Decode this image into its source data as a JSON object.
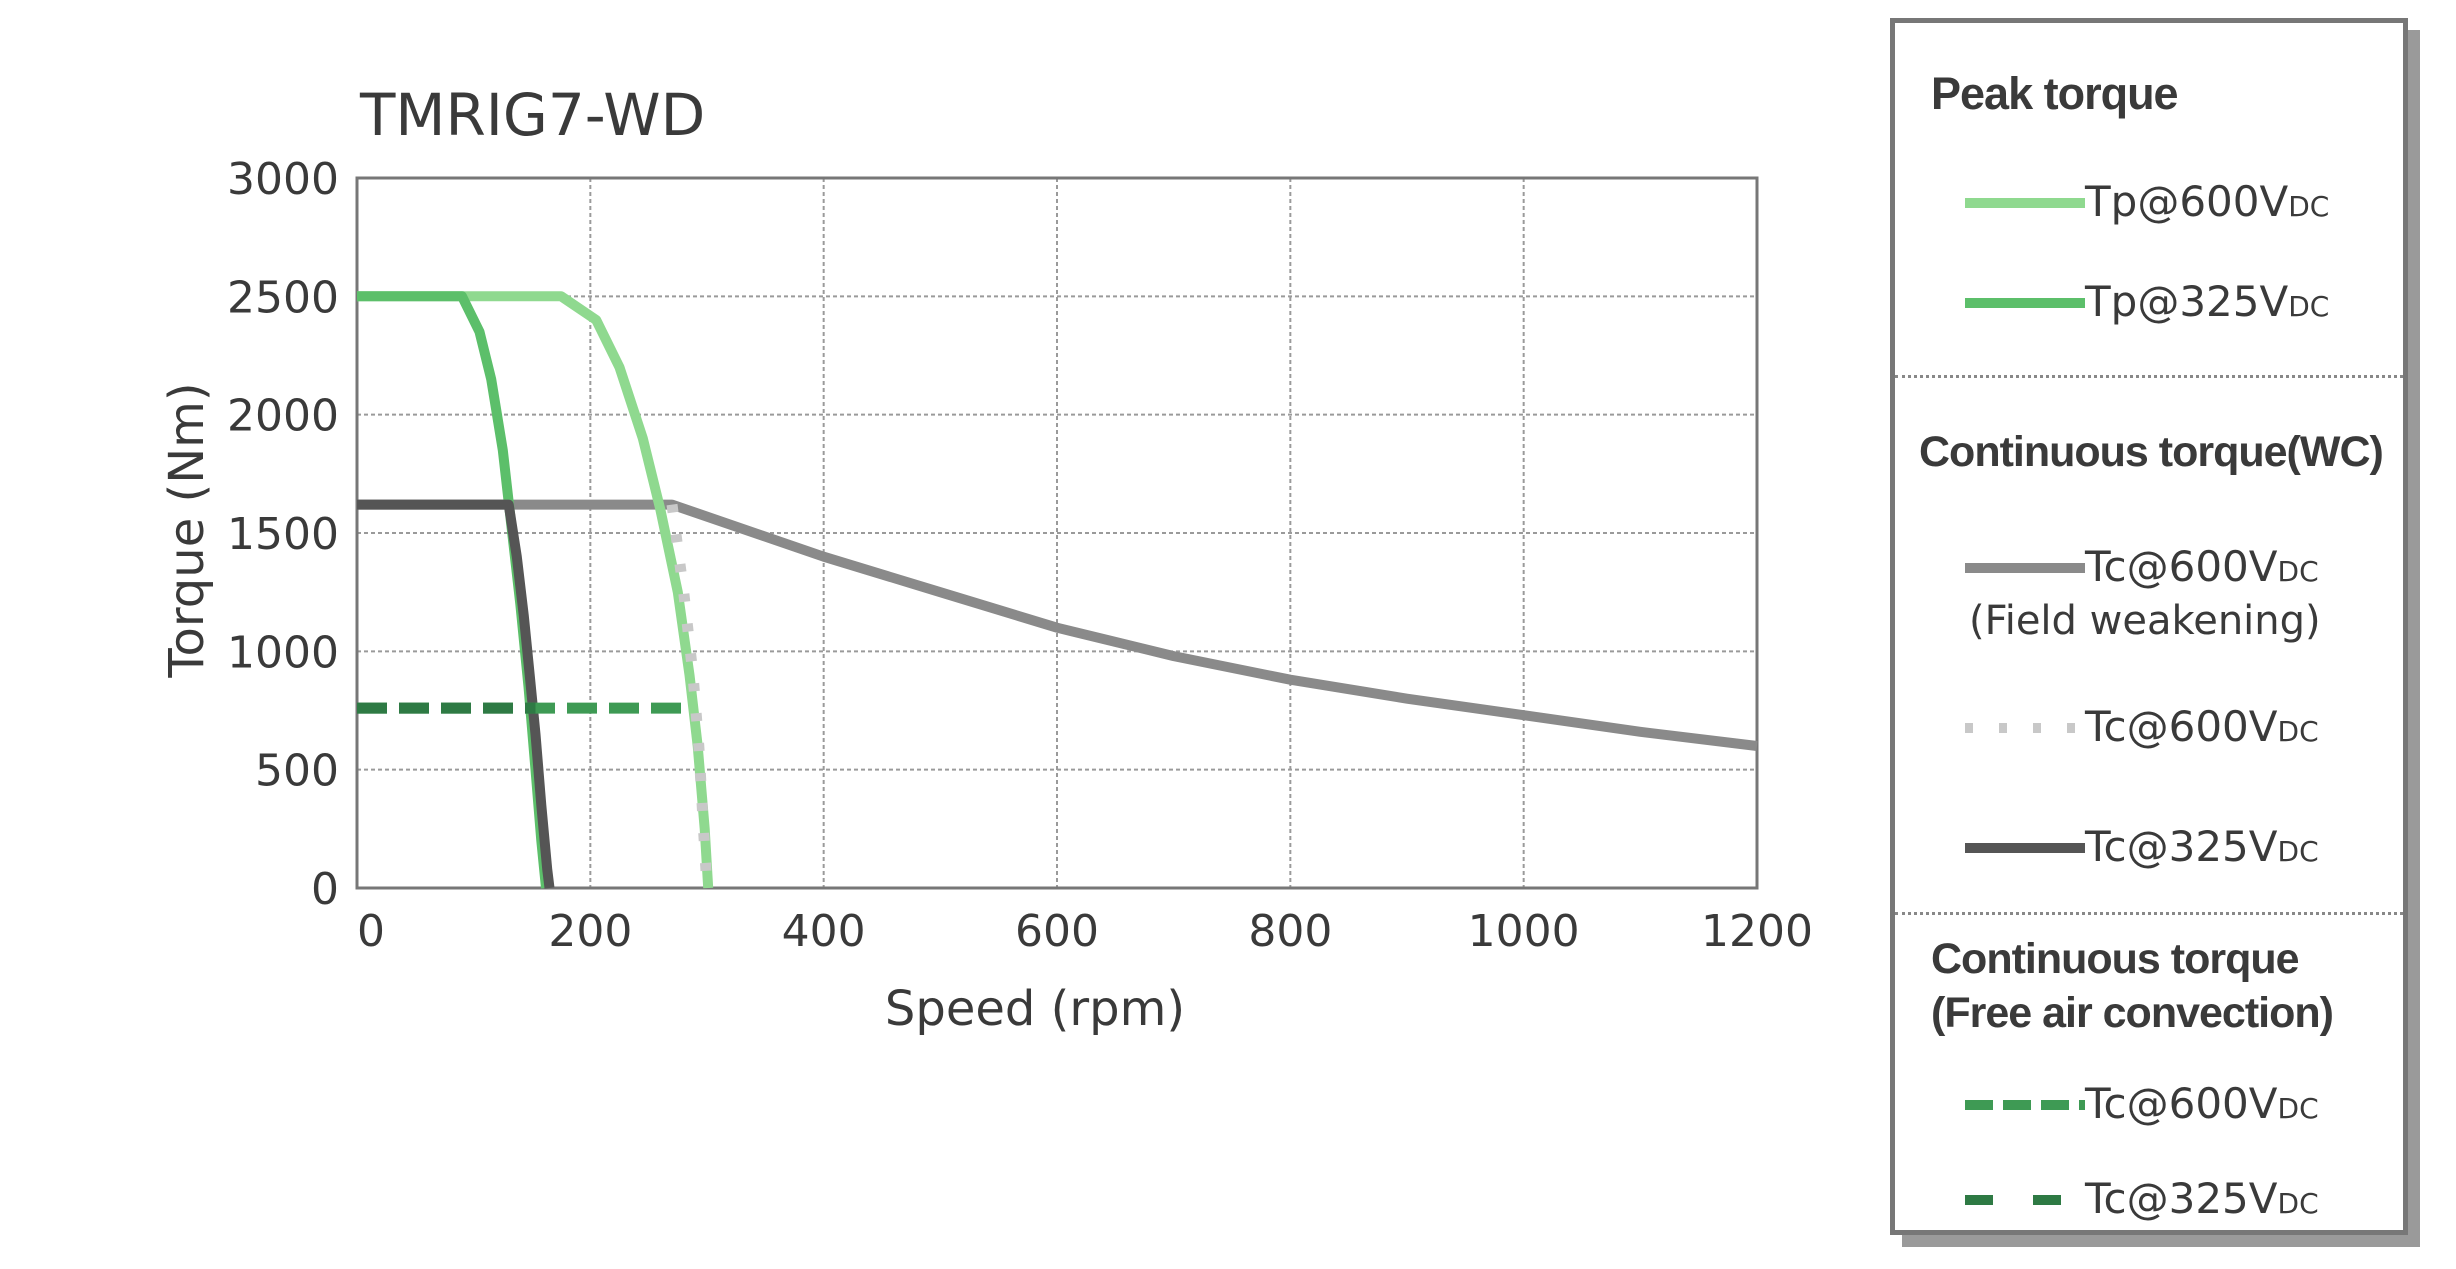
{
  "chart_data": {
    "type": "line",
    "title": "TMRIG7-WD",
    "xlabel": "Speed (rpm)",
    "ylabel": "Torque (Nm)",
    "xlim": [
      0,
      1200
    ],
    "ylim": [
      0,
      3000
    ],
    "xticks": [
      0,
      200,
      400,
      600,
      800,
      1000,
      1200
    ],
    "yticks": [
      0,
      500,
      1000,
      1500,
      2000,
      2500,
      3000
    ],
    "grid": true,
    "legend_position": "right",
    "series": [
      {
        "name": "Tp@600VDC",
        "group": "Peak torque",
        "color": "#8fd98f",
        "style": "solid",
        "x": [
          0,
          175,
          205,
          225,
          245,
          260,
          275,
          285,
          292,
          298,
          301
        ],
        "y": [
          2500,
          2500,
          2400,
          2200,
          1900,
          1600,
          1250,
          900,
          600,
          250,
          0
        ]
      },
      {
        "name": "Tp@325VDC",
        "group": "Peak torque",
        "color": "#5cbf6a",
        "style": "solid",
        "x": [
          0,
          90,
          105,
          115,
          125,
          133,
          140,
          147,
          153,
          158,
          162
        ],
        "y": [
          2500,
          2500,
          2350,
          2150,
          1850,
          1500,
          1200,
          850,
          500,
          200,
          0
        ]
      },
      {
        "name": "Tc@600VDC (Field weakening)",
        "group": "Continuous torque(WC)",
        "color": "#8a8a8a",
        "style": "solid",
        "x": [
          0,
          270,
          400,
          500,
          600,
          700,
          800,
          900,
          1000,
          1100,
          1200
        ],
        "y": [
          1620,
          1620,
          1400,
          1250,
          1100,
          980,
          880,
          800,
          730,
          660,
          600
        ]
      },
      {
        "name": "Tc@600VDC",
        "group": "Continuous torque(WC)",
        "color": "#c8c8c8",
        "style": "dotted",
        "x": [
          270,
          280,
          288,
          293,
          297,
          300
        ],
        "y": [
          1620,
          1250,
          900,
          600,
          250,
          0
        ]
      },
      {
        "name": "Tc@325VDC",
        "group": "Continuous torque(WC)",
        "color": "#555555",
        "style": "solid",
        "x": [
          0,
          130,
          137,
          143,
          148,
          153,
          158,
          163,
          165
        ],
        "y": [
          1620,
          1620,
          1400,
          1150,
          900,
          650,
          350,
          80,
          0
        ]
      },
      {
        "name": "Tc@600VDC",
        "group": "Continuous torque (Free air convection)",
        "color": "#3e9a54",
        "style": "dashed",
        "x": [
          0,
          280
        ],
        "y": [
          760,
          760
        ]
      },
      {
        "name": "Tc@325VDC",
        "group": "Continuous torque (Free air convection)",
        "color": "#2e7a44",
        "style": "dashed",
        "x": [
          0,
          153
        ],
        "y": [
          760,
          760
        ]
      }
    ]
  },
  "legend": {
    "peak_heading": "Peak torque",
    "peak_items": [
      {
        "label": "Tp@600V",
        "sub": "DC"
      },
      {
        "label": "Tp@325V",
        "sub": "DC"
      }
    ],
    "wc_heading": "Continuous torque(WC)",
    "wc_items": [
      {
        "label": "Tc@600V",
        "sub": "DC",
        "note": "(Field weakening)"
      },
      {
        "label": "Tc@600V",
        "sub": "DC"
      },
      {
        "label": "Tc@325V",
        "sub": "DC"
      }
    ],
    "free_heading_1": "Continuous torque",
    "free_heading_2": "(Free air convection)",
    "free_items": [
      {
        "label": "Tc@600V",
        "sub": "DC"
      },
      {
        "label": "Tc@325V",
        "sub": "DC"
      }
    ]
  }
}
